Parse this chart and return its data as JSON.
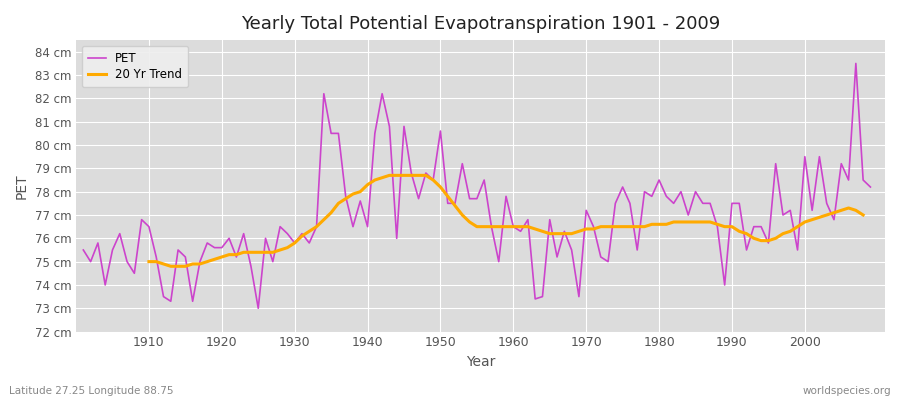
{
  "title": "Yearly Total Potential Evapotranspiration 1901 - 2009",
  "xlabel": "Year",
  "ylabel": "PET",
  "lat_lon_label": "Latitude 27.25 Longitude 88.75",
  "source_label": "worldspecies.org",
  "ylim": [
    72,
    84.5
  ],
  "yticks": [
    72,
    73,
    74,
    75,
    76,
    77,
    78,
    79,
    80,
    81,
    82,
    83,
    84
  ],
  "pet_color": "#cc44cc",
  "trend_color": "#ffaa00",
  "fig_bg_color": "#ffffff",
  "plot_bg_color": "#dcdcdc",
  "legend_entries": [
    "PET",
    "20 Yr Trend"
  ],
  "years": [
    1901,
    1902,
    1903,
    1904,
    1905,
    1906,
    1907,
    1908,
    1909,
    1910,
    1911,
    1912,
    1913,
    1914,
    1915,
    1916,
    1917,
    1918,
    1919,
    1920,
    1921,
    1922,
    1923,
    1924,
    1925,
    1926,
    1927,
    1928,
    1929,
    1930,
    1931,
    1932,
    1933,
    1934,
    1935,
    1936,
    1937,
    1938,
    1939,
    1940,
    1941,
    1942,
    1943,
    1944,
    1945,
    1946,
    1947,
    1948,
    1949,
    1950,
    1951,
    1952,
    1953,
    1954,
    1955,
    1956,
    1957,
    1958,
    1959,
    1960,
    1961,
    1962,
    1963,
    1964,
    1965,
    1966,
    1967,
    1968,
    1969,
    1970,
    1971,
    1972,
    1973,
    1974,
    1975,
    1976,
    1977,
    1978,
    1979,
    1980,
    1981,
    1982,
    1983,
    1984,
    1985,
    1986,
    1987,
    1988,
    1989,
    1990,
    1991,
    1992,
    1993,
    1994,
    1995,
    1996,
    1997,
    1998,
    1999,
    2000,
    2001,
    2002,
    2003,
    2004,
    2005,
    2006,
    2007,
    2008,
    2009
  ],
  "pet_values": [
    75.5,
    75.0,
    75.8,
    74.0,
    75.5,
    76.2,
    75.0,
    74.5,
    76.8,
    76.5,
    75.2,
    73.5,
    73.3,
    75.5,
    75.2,
    73.3,
    75.0,
    75.8,
    75.6,
    75.6,
    76.0,
    75.2,
    76.2,
    74.8,
    73.0,
    76.0,
    75.0,
    76.5,
    76.2,
    75.8,
    76.2,
    75.8,
    76.5,
    82.2,
    80.5,
    80.5,
    77.8,
    76.5,
    77.6,
    76.5,
    80.5,
    82.2,
    80.8,
    76.0,
    80.8,
    78.8,
    77.7,
    78.8,
    78.5,
    80.6,
    77.5,
    77.5,
    79.2,
    77.7,
    77.7,
    78.5,
    76.5,
    75.0,
    77.8,
    76.5,
    76.3,
    76.8,
    73.4,
    73.5,
    76.8,
    75.2,
    76.3,
    75.5,
    73.5,
    77.2,
    76.5,
    75.2,
    75.0,
    77.5,
    78.2,
    77.5,
    75.5,
    78.0,
    77.8,
    78.5,
    77.8,
    77.5,
    78.0,
    77.0,
    78.0,
    77.5,
    77.5,
    76.5,
    74.0,
    77.5,
    77.5,
    75.5,
    76.5,
    76.5,
    75.8,
    79.2,
    77.0,
    77.2,
    75.5,
    79.5,
    77.2,
    79.5,
    77.5,
    76.8,
    79.2,
    78.5,
    83.5,
    78.5,
    78.2
  ],
  "trend_values": [
    null,
    null,
    null,
    null,
    null,
    null,
    null,
    null,
    null,
    75.0,
    75.0,
    74.9,
    74.8,
    74.8,
    74.8,
    74.9,
    74.9,
    75.0,
    75.1,
    75.2,
    75.3,
    75.3,
    75.4,
    75.4,
    75.4,
    75.4,
    75.4,
    75.5,
    75.6,
    75.8,
    76.1,
    76.3,
    76.5,
    76.8,
    77.1,
    77.5,
    77.7,
    77.9,
    78.0,
    78.3,
    78.5,
    78.6,
    78.7,
    78.7,
    78.7,
    78.7,
    78.7,
    78.7,
    78.5,
    78.2,
    77.8,
    77.4,
    77.0,
    76.7,
    76.5,
    76.5,
    76.5,
    76.5,
    76.5,
    76.5,
    76.5,
    76.5,
    76.4,
    76.3,
    76.2,
    76.2,
    76.2,
    76.2,
    76.3,
    76.4,
    76.4,
    76.5,
    76.5,
    76.5,
    76.5,
    76.5,
    76.5,
    76.5,
    76.6,
    76.6,
    76.6,
    76.7,
    76.7,
    76.7,
    76.7,
    76.7,
    76.7,
    76.6,
    76.5,
    76.5,
    76.3,
    76.2,
    76.0,
    75.9,
    75.9,
    76.0,
    76.2,
    76.3,
    76.5,
    76.7,
    76.8,
    76.9,
    77.0,
    77.1,
    77.2,
    77.3,
    77.2,
    77.0
  ]
}
